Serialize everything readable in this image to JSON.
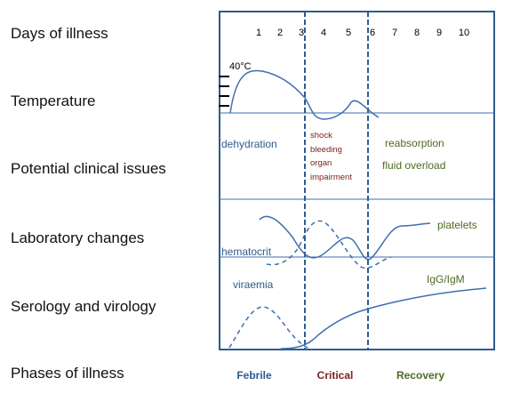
{
  "row_labels": {
    "days": "Days of illness",
    "temperature": "Temperature",
    "clinical": "Potential clinical issues",
    "laboratory": "Laboratory changes",
    "serology": "Serology and virology",
    "phases": "Phases of illness"
  },
  "days": [
    "1",
    "2",
    "3",
    "4",
    "5",
    "6",
    "7",
    "8",
    "9",
    "10"
  ],
  "temperature_peak": "40°C",
  "clinical": {
    "febrile_issue": "dehydration",
    "critical_issues": [
      "shock",
      "bleeding",
      "organ",
      "impairment"
    ],
    "recovery_issues": [
      "reabsorption",
      "fluid overload"
    ]
  },
  "laboratory": {
    "platelets": "platelets",
    "hematocrit": "hematocrit"
  },
  "serology": {
    "viraemia": "viraemia",
    "antibodies": "IgG/IgM"
  },
  "phases": {
    "febrile": "Febrile",
    "critical": "Critical",
    "recovery": "Recovery"
  },
  "colors": {
    "frame": "#2e5a8e",
    "curve": "#3d6fb0",
    "febrile_text": "#2e5a8e",
    "critical_text": "#7a2222",
    "recovery_text": "#4f6a22"
  }
}
